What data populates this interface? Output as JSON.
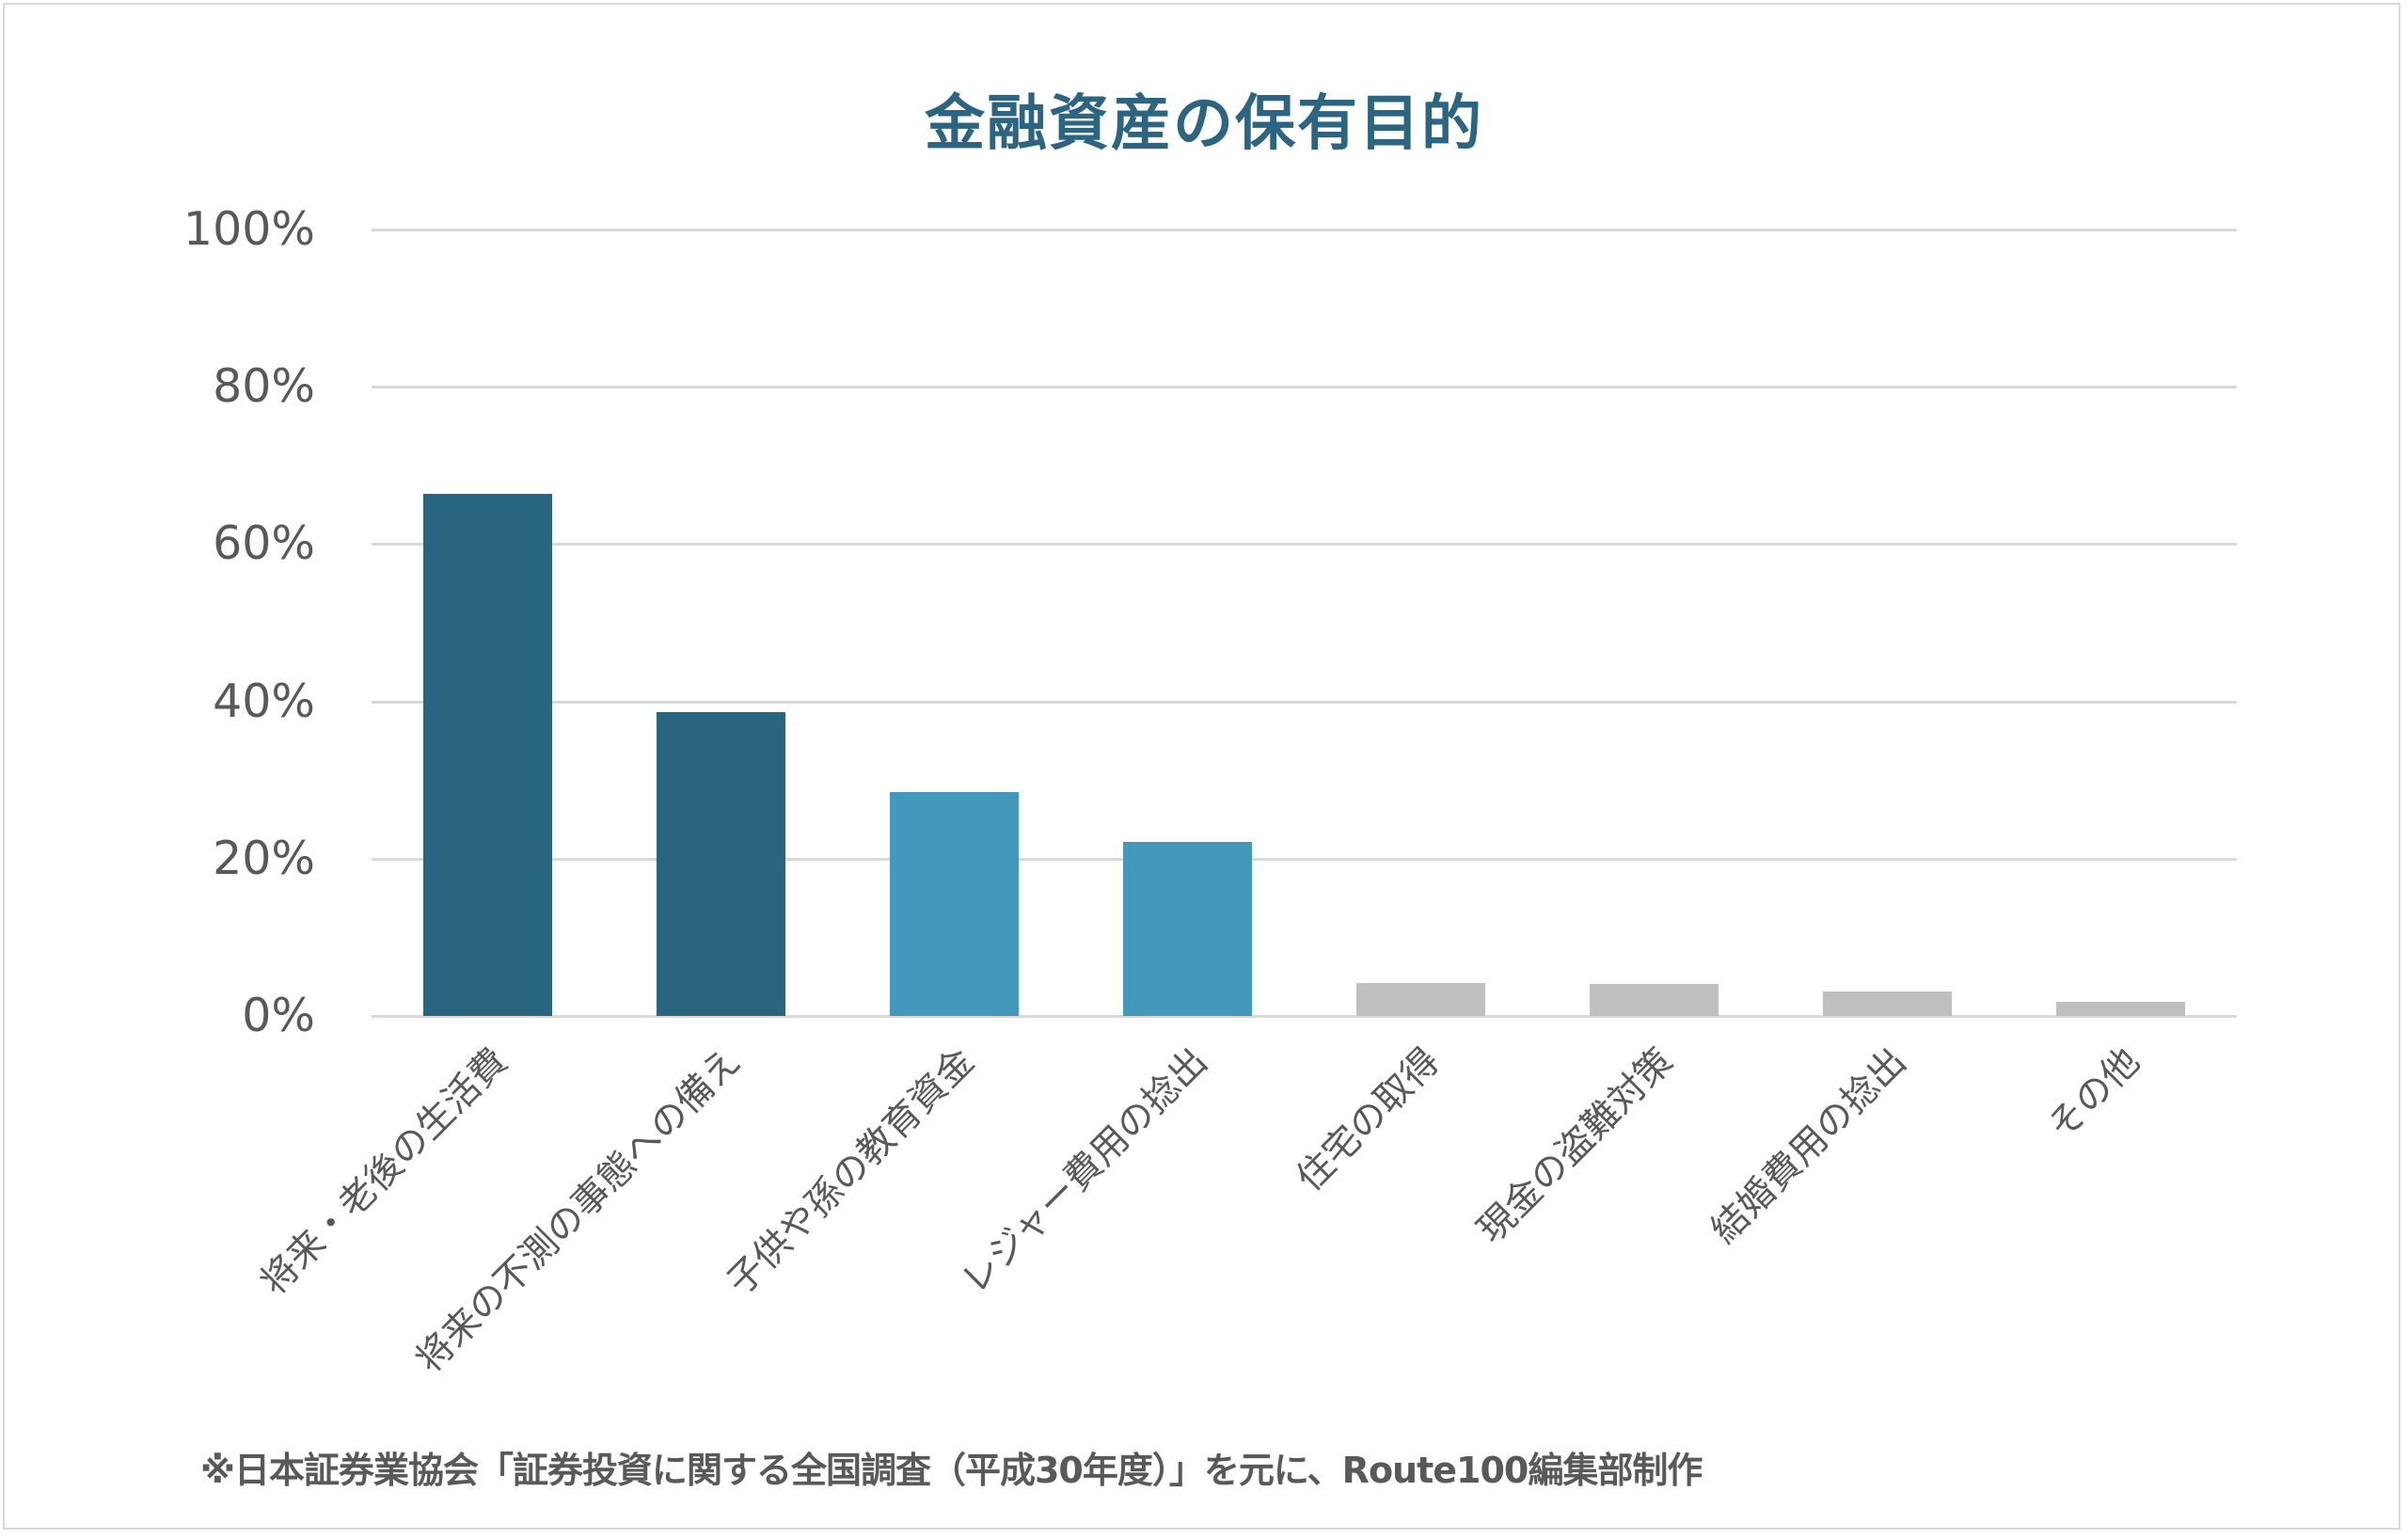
{
  "title": "金融資産の保有目的",
  "footnote": "※日本証券業協会「証券投資に関する全国調査（平成30年度）」を元に、Route100編集部制作",
  "colors": {
    "title": "#2b6582",
    "dark_blue": "#2a6580",
    "light_blue": "#4399bc",
    "gray": "#bfbfbf",
    "gridline": "#d9d9d9",
    "text": "#595959"
  },
  "y_axis": {
    "ticks": [
      "100%",
      "80%",
      "60%",
      "40%",
      "20%",
      "0%"
    ]
  },
  "chart_data": {
    "type": "bar",
    "title": "金融資産の保有目的",
    "xlabel": "",
    "ylabel": "",
    "ylim": [
      0,
      100
    ],
    "y_tick_labels": [
      "0%",
      "20%",
      "40%",
      "60%",
      "80%",
      "100%"
    ],
    "grid": true,
    "legend": null,
    "categories": [
      "将来・老後の生活費",
      "将来の不測の事態への備え",
      "子供や孫の教育資金",
      "レジャー費用の捻出",
      "住宅の取得",
      "現金の盗難対策",
      "結婚費用の捻出",
      "その他"
    ],
    "values": [
      66.4,
      38.6,
      28.5,
      22.1,
      4.2,
      4.1,
      3.1,
      1.8
    ],
    "bar_colors": [
      "#2a6580",
      "#2a6580",
      "#4399bc",
      "#4399bc",
      "#bfbfbf",
      "#bfbfbf",
      "#bfbfbf",
      "#bfbfbf"
    ],
    "annotations": [
      "※日本証券業協会「証券投資に関する全国調査（平成30年度）」を元に、Route100編集部制作"
    ]
  }
}
